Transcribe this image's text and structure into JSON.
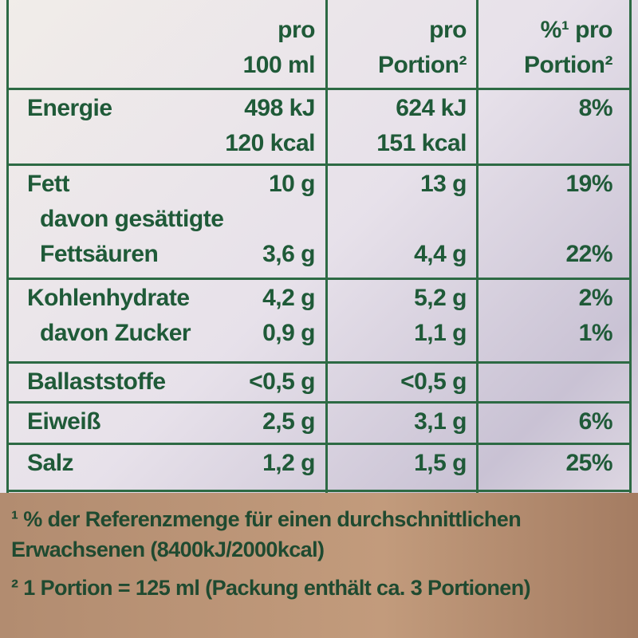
{
  "header": {
    "columns": [
      [
        "pro",
        "100 ml"
      ],
      [
        "pro",
        "Portion²"
      ],
      [
        "%¹ pro",
        "Portion²"
      ]
    ]
  },
  "table": {
    "groups": [
      [
        [
          "Energie",
          "498 kJ",
          "624 kJ",
          "8%"
        ],
        [
          null,
          "120 kcal",
          "151 kcal",
          null
        ]
      ],
      [
        [
          "Fett",
          "10 g",
          "13 g",
          "19%"
        ],
        [
          "davon gesättigte",
          null,
          null,
          null
        ],
        [
          "Fettsäuren",
          "3,6 g",
          "4,4 g",
          "22%"
        ]
      ],
      [
        [
          "Kohlenhydrate",
          "4,2 g",
          "5,2 g",
          "2%"
        ],
        [
          "davon Zucker",
          "0,9 g",
          "1,1 g",
          "1%"
        ]
      ],
      [
        [
          "Ballaststoffe",
          "<0,5 g",
          "<0,5 g",
          null
        ]
      ],
      [
        [
          "Eiweiß",
          "2,5 g",
          "3,1 g",
          "6%"
        ]
      ],
      [
        [
          "Salz",
          "1,2 g",
          "1,5 g",
          "25%"
        ]
      ]
    ]
  },
  "footnotes": [
    "¹ % der Referenzmenge für einen durchschnittlichen Erwachsenen (8400kJ/2000kcal)",
    "² 1 Portion = 125 ml (Packung enthält ca. 3 Portionen)"
  ]
}
